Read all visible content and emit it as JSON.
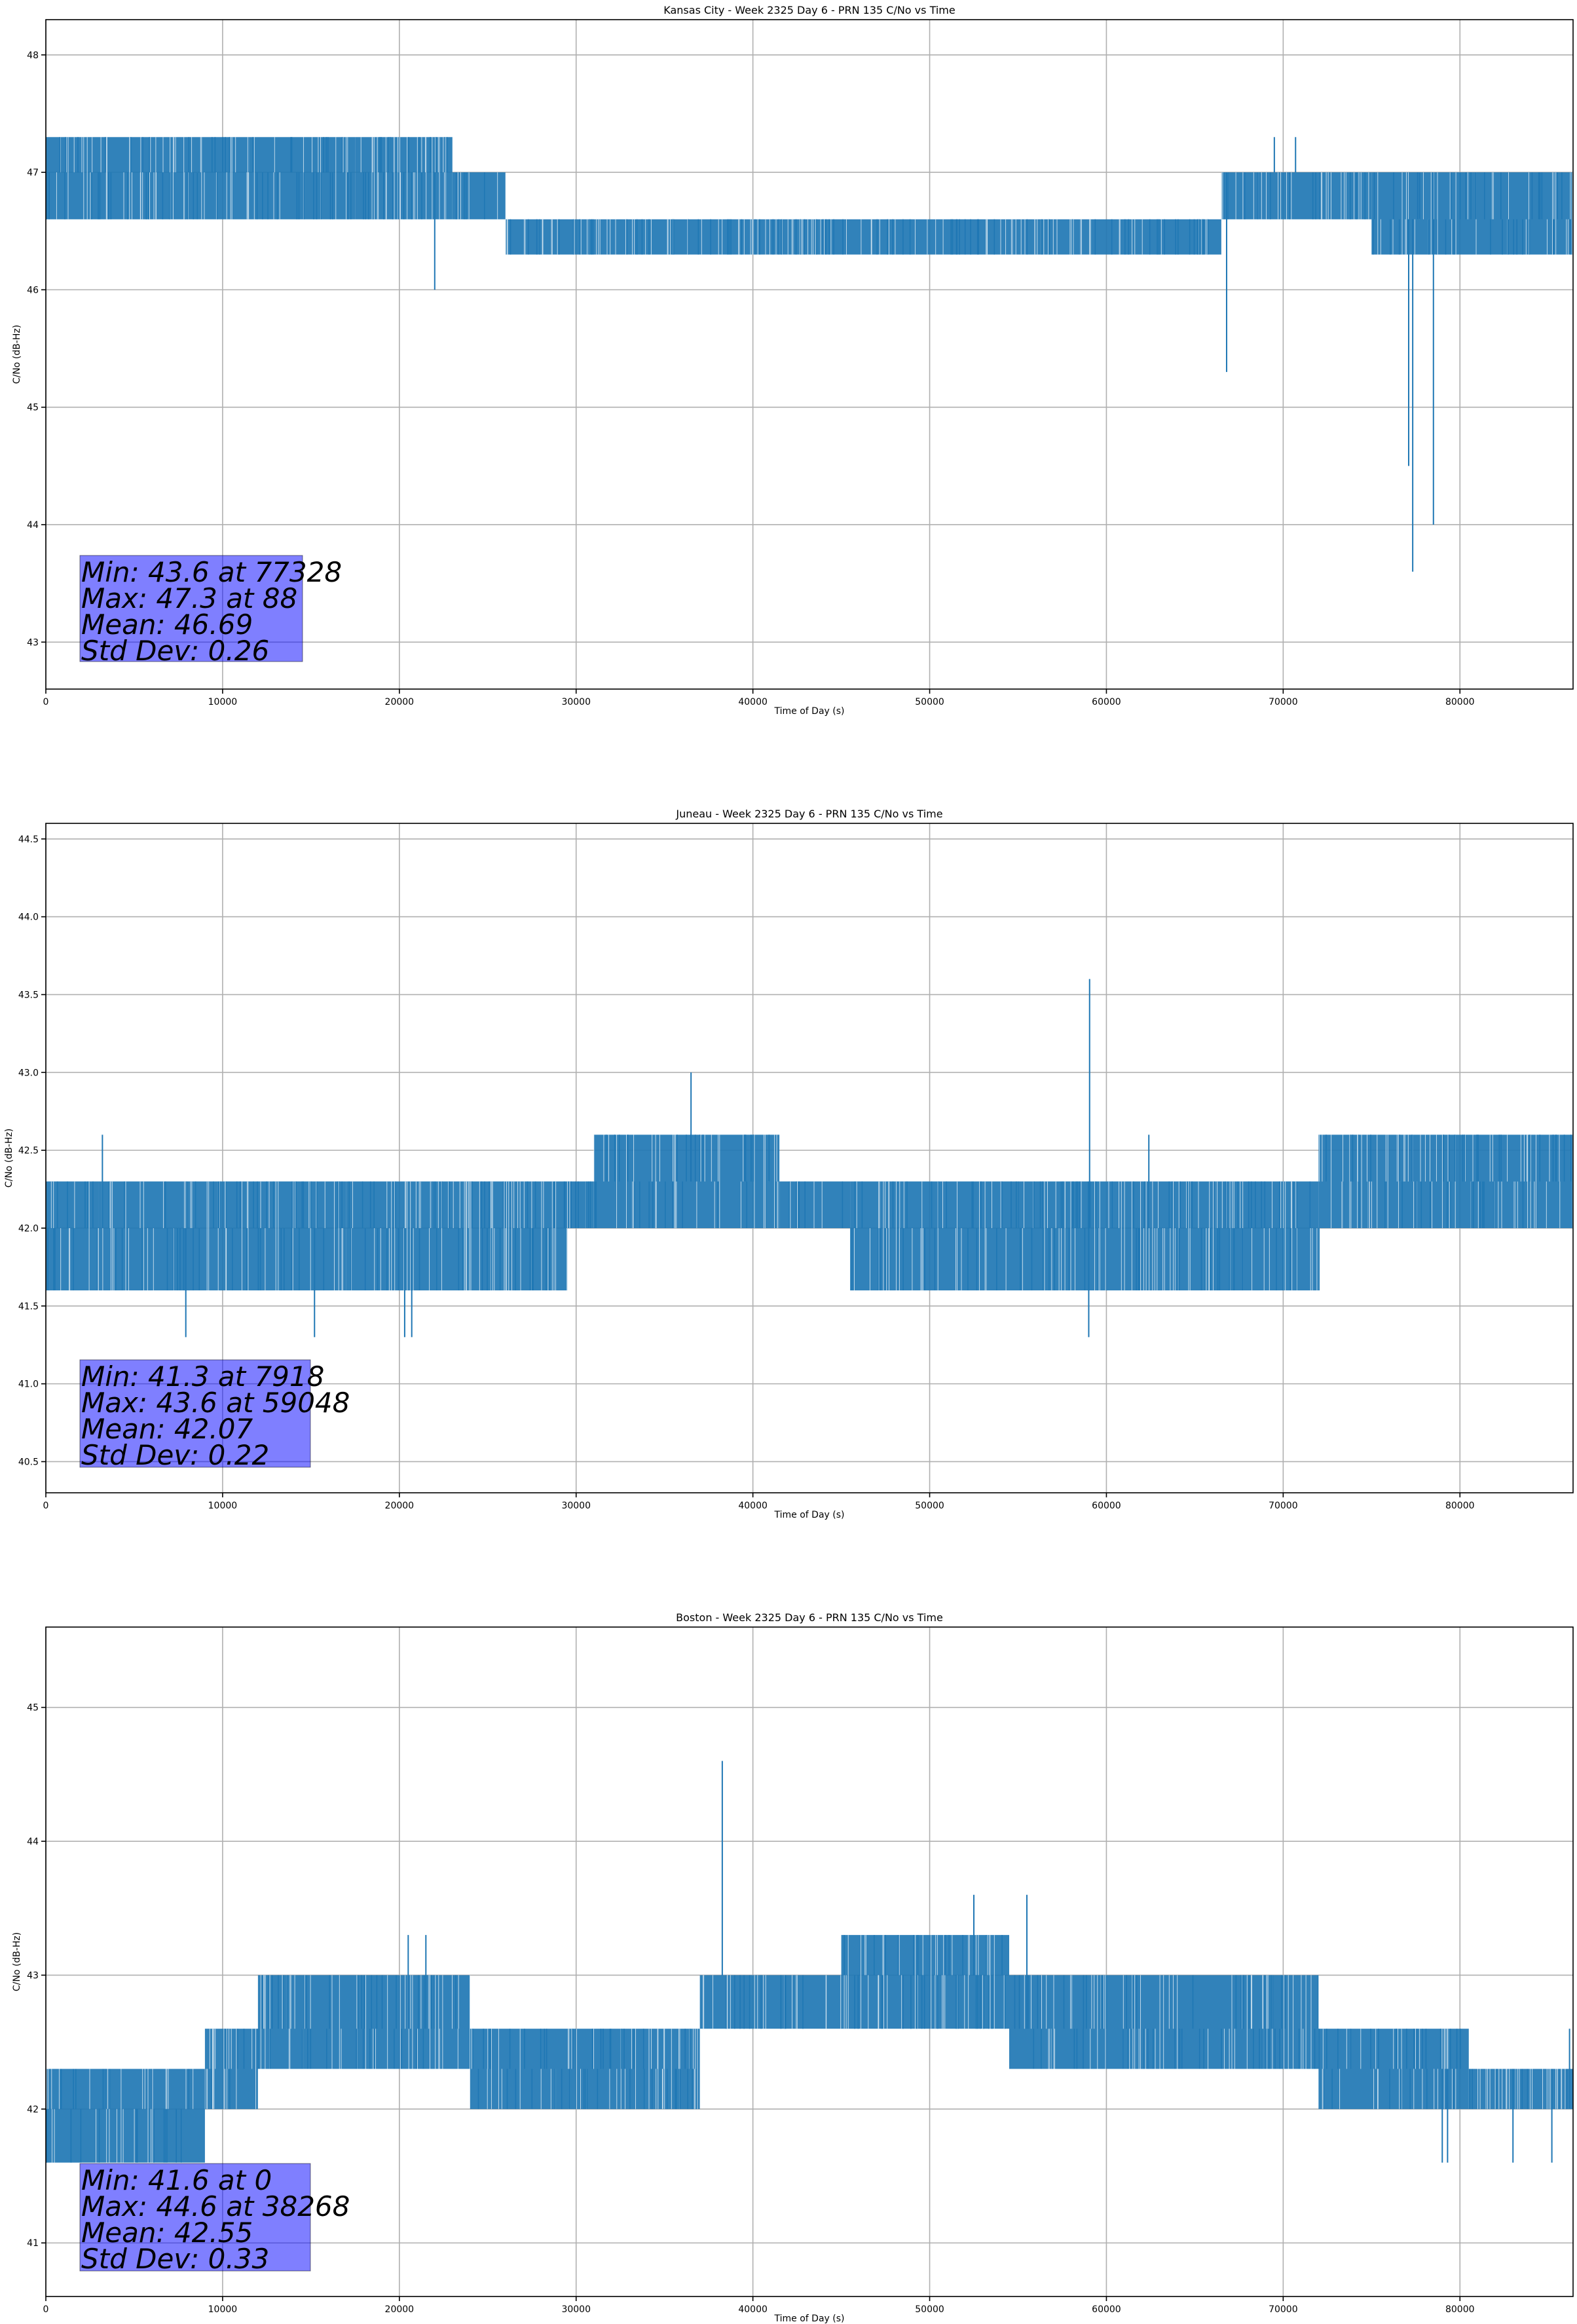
{
  "chart_data": [
    {
      "type": "line",
      "title": "Kansas City - Week 2325 Day 6 - PRN 135 C/No vs Time",
      "xlabel": "Time of Day (s)",
      "ylabel": "C/No (dB-Hz)",
      "xlim": [
        0,
        86400
      ],
      "ylim": [
        42.6,
        48.3
      ],
      "xticks": [
        0,
        10000,
        20000,
        30000,
        40000,
        50000,
        60000,
        70000,
        80000
      ],
      "xtick_labels": [
        "0",
        "10000",
        "20000",
        "30000",
        "40000",
        "50000",
        "60000",
        "70000",
        "80000"
      ],
      "yticks": [
        43,
        44,
        45,
        46,
        47,
        48
      ],
      "ytick_labels": [
        "43",
        "44",
        "45",
        "46",
        "47",
        "48"
      ],
      "grid": true,
      "line_color": "#1f77b4",
      "segments": [
        {
          "x": [
            0,
            2500
          ],
          "levels": [
            46.6,
            47.0,
            47.3
          ]
        },
        {
          "x": [
            2500,
            11500
          ],
          "levels": [
            46.6,
            47.0,
            47.3
          ]
        },
        {
          "x": [
            11500,
            17500
          ],
          "levels": [
            46.6,
            47.0,
            47.3
          ]
        },
        {
          "x": [
            17500,
            23000
          ],
          "levels": [
            46.6,
            47.0,
            47.3
          ]
        },
        {
          "x": [
            23000,
            26000
          ],
          "levels": [
            46.6,
            47.0
          ]
        },
        {
          "x": [
            26000,
            40000
          ],
          "levels": [
            46.3,
            46.6
          ]
        },
        {
          "x": [
            40000,
            58000
          ],
          "levels": [
            46.3,
            46.6
          ]
        },
        {
          "x": [
            58000,
            66500
          ],
          "levels": [
            46.3,
            46.6
          ]
        },
        {
          "x": [
            66500,
            75000
          ],
          "levels": [
            46.6,
            47.0
          ]
        },
        {
          "x": [
            75000,
            86400
          ],
          "levels": [
            46.3,
            46.6,
            47.0
          ]
        }
      ],
      "spikes": [
        {
          "x": 22000,
          "y": 46.0
        },
        {
          "x": 66800,
          "y": 45.3
        },
        {
          "x": 69500,
          "y": 47.3
        },
        {
          "x": 70700,
          "y": 47.3
        },
        {
          "x": 77100,
          "y": 44.5
        },
        {
          "x": 77328,
          "y": 43.6
        },
        {
          "x": 78500,
          "y": 44.0
        }
      ],
      "stats": {
        "min": "Min: 43.6 at 77328",
        "max": "Max: 47.3 at 88",
        "mean": "Mean: 46.69",
        "std": "Std Dev: 0.26"
      }
    },
    {
      "type": "line",
      "title": "Juneau - Week 2325 Day 6 - PRN 135 C/No vs Time",
      "xlabel": "Time of Day (s)",
      "ylabel": "C/No (dB-Hz)",
      "xlim": [
        0,
        86400
      ],
      "ylim": [
        40.3,
        44.6
      ],
      "xticks": [
        0,
        10000,
        20000,
        30000,
        40000,
        50000,
        60000,
        70000,
        80000
      ],
      "xtick_labels": [
        "0",
        "10000",
        "20000",
        "30000",
        "40000",
        "50000",
        "60000",
        "70000",
        "80000"
      ],
      "yticks": [
        40.5,
        41.0,
        41.5,
        42.0,
        42.5,
        43.0,
        43.5,
        44.0,
        44.5
      ],
      "ytick_labels": [
        "40.5",
        "41.0",
        "41.5",
        "42.0",
        "42.5",
        "43.0",
        "43.5",
        "44.0",
        "44.5"
      ],
      "grid": true,
      "line_color": "#1f77b4",
      "segments": [
        {
          "x": [
            0,
            3000
          ],
          "levels": [
            41.6,
            42.0,
            42.3
          ]
        },
        {
          "x": [
            3000,
            17000
          ],
          "levels": [
            41.6,
            42.0,
            42.3
          ]
        },
        {
          "x": [
            17000,
            29500
          ],
          "levels": [
            41.6,
            42.0,
            42.3
          ]
        },
        {
          "x": [
            29500,
            31000
          ],
          "levels": [
            42.0,
            42.3
          ]
        },
        {
          "x": [
            31000,
            41500
          ],
          "levels": [
            42.0,
            42.3,
            42.6
          ]
        },
        {
          "x": [
            41500,
            45500
          ],
          "levels": [
            42.0,
            42.3
          ]
        },
        {
          "x": [
            45500,
            62000
          ],
          "levels": [
            41.6,
            42.0,
            42.3
          ]
        },
        {
          "x": [
            62000,
            72000
          ],
          "levels": [
            41.6,
            42.0,
            42.3
          ]
        },
        {
          "x": [
            72000,
            86400
          ],
          "levels": [
            42.0,
            42.3,
            42.6
          ]
        }
      ],
      "spikes": [
        {
          "x": 3200,
          "y": 42.6
        },
        {
          "x": 7918,
          "y": 41.3
        },
        {
          "x": 15200,
          "y": 41.3
        },
        {
          "x": 20300,
          "y": 41.3
        },
        {
          "x": 20700,
          "y": 41.3
        },
        {
          "x": 36500,
          "y": 43.0
        },
        {
          "x": 59048,
          "y": 43.6
        },
        {
          "x": 59000,
          "y": 41.3
        },
        {
          "x": 62400,
          "y": 42.6
        }
      ],
      "stats": {
        "min": "Min: 41.3 at 7918",
        "max": "Max: 43.6 at 59048",
        "mean": "Mean: 42.07",
        "std": "Std Dev: 0.22"
      }
    },
    {
      "type": "line",
      "title": "Boston - Week 2325 Day 6 - PRN 135 C/No vs Time",
      "xlabel": "Time of Day (s)",
      "ylabel": "C/No (dB-Hz)",
      "xlim": [
        0,
        86400
      ],
      "ylim": [
        40.6,
        45.6
      ],
      "xticks": [
        0,
        10000,
        20000,
        30000,
        40000,
        50000,
        60000,
        70000,
        80000
      ],
      "xtick_labels": [
        "0",
        "10000",
        "20000",
        "30000",
        "40000",
        "50000",
        "60000",
        "70000",
        "80000"
      ],
      "yticks": [
        41,
        42,
        43,
        44,
        45
      ],
      "ytick_labels": [
        "41",
        "42",
        "43",
        "44",
        "45"
      ],
      "grid": true,
      "line_color": "#1f77b4",
      "segments": [
        {
          "x": [
            0,
            9000
          ],
          "levels": [
            41.6,
            42.0,
            42.3
          ]
        },
        {
          "x": [
            9000,
            12000
          ],
          "levels": [
            42.0,
            42.3,
            42.6
          ]
        },
        {
          "x": [
            12000,
            24000
          ],
          "levels": [
            42.3,
            42.6,
            43.0
          ]
        },
        {
          "x": [
            24000,
            37000
          ],
          "levels": [
            42.0,
            42.3,
            42.6
          ]
        },
        {
          "x": [
            37000,
            45000
          ],
          "levels": [
            42.6,
            43.0
          ]
        },
        {
          "x": [
            45000,
            54500
          ],
          "levels": [
            42.6,
            43.0,
            43.3
          ]
        },
        {
          "x": [
            54500,
            72000
          ],
          "levels": [
            42.3,
            42.6,
            43.0
          ]
        },
        {
          "x": [
            72000,
            80500
          ],
          "levels": [
            42.0,
            42.3,
            42.6
          ]
        },
        {
          "x": [
            80500,
            86400
          ],
          "levels": [
            42.0,
            42.3
          ]
        }
      ],
      "spikes": [
        {
          "x": 38268,
          "y": 44.6
        },
        {
          "x": 52500,
          "y": 43.6
        },
        {
          "x": 55500,
          "y": 43.6
        },
        {
          "x": 20500,
          "y": 43.3
        },
        {
          "x": 21500,
          "y": 43.3
        },
        {
          "x": 79000,
          "y": 41.6
        },
        {
          "x": 79300,
          "y": 41.6
        },
        {
          "x": 83000,
          "y": 41.6
        },
        {
          "x": 85200,
          "y": 41.6
        },
        {
          "x": 86200,
          "y": 42.6
        }
      ],
      "stats": {
        "min": "Min: 41.6 at 0",
        "max": "Max: 44.6 at 38268",
        "mean": "Mean: 42.55",
        "std": "Std Dev: 0.33"
      }
    }
  ]
}
